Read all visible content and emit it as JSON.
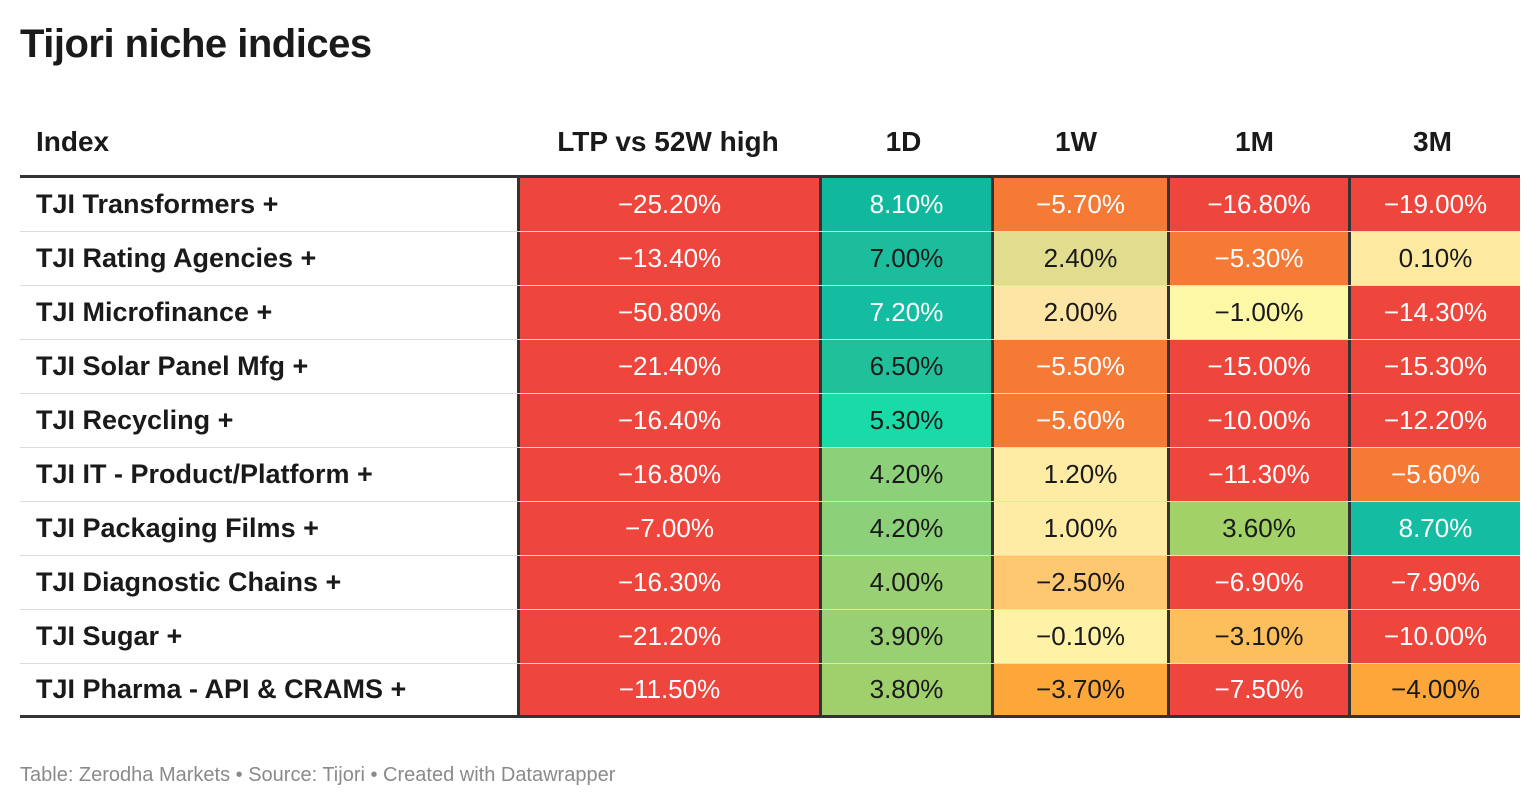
{
  "chart_data": {
    "type": "table",
    "title": "Tijori niche indices",
    "columns": [
      "Index",
      "LTP vs 52W high",
      "1D",
      "1W",
      "1M",
      "3M"
    ],
    "rows": [
      {
        "name": "TJI Transformers +",
        "ltp": "−25.20%",
        "d1": "8.10%",
        "w1": "−5.70%",
        "m1": "−16.80%",
        "m3": "−19.00%",
        "colors": {
          "ltp": "#ee463c",
          "d1": "#10b99e",
          "w1": "#f47a36",
          "m1": "#ee463c",
          "m3": "#ee463c"
        }
      },
      {
        "name": "TJI Rating Agencies +",
        "ltp": "−13.40%",
        "d1": "7.00%",
        "w1": "2.40%",
        "m1": "−5.30%",
        "m3": "0.10%",
        "colors": {
          "ltp": "#ee463c",
          "d1": "#1cbd9c",
          "w1": "#e2dc8e",
          "m1": "#f47a36",
          "m3": "#fde9a0"
        }
      },
      {
        "name": "TJI Microfinance +",
        "ltp": "−50.80%",
        "d1": "7.20%",
        "w1": "2.00%",
        "m1": "−1.00%",
        "m3": "−14.30%",
        "colors": {
          "ltp": "#ee463c",
          "d1": "#14bca2",
          "w1": "#fde5a5",
          "m1": "#fdf8a6",
          "m3": "#ee463c"
        }
      },
      {
        "name": "TJI Solar Panel Mfg +",
        "ltp": "−21.40%",
        "d1": "6.50%",
        "w1": "−5.50%",
        "m1": "−15.00%",
        "m3": "−15.30%",
        "colors": {
          "ltp": "#ee463c",
          "d1": "#20c09a",
          "w1": "#f47a36",
          "m1": "#ee463c",
          "m3": "#ee463c"
        }
      },
      {
        "name": "TJI Recycling +",
        "ltp": "−16.40%",
        "d1": "5.30%",
        "w1": "−5.60%",
        "m1": "−10.00%",
        "m3": "−12.20%",
        "colors": {
          "ltp": "#ee463c",
          "d1": "#18dba8",
          "w1": "#f47a36",
          "m1": "#ee463c",
          "m3": "#ee463c"
        }
      },
      {
        "name": "TJI IT - Product/Platform +",
        "ltp": "−16.80%",
        "d1": "4.20%",
        "w1": "1.20%",
        "m1": "−11.30%",
        "m3": "−5.60%",
        "colors": {
          "ltp": "#ee463c",
          "d1": "#8dd07a",
          "w1": "#feeba4",
          "m1": "#ee463c",
          "m3": "#f47a36"
        }
      },
      {
        "name": "TJI Packaging Films +",
        "ltp": "−7.00%",
        "d1": "4.20%",
        "w1": "1.00%",
        "m1": "3.60%",
        "m3": "8.70%",
        "colors": {
          "ltp": "#ee463c",
          "d1": "#8dd07a",
          "w1": "#feeba4",
          "m1": "#a2d167",
          "m3": "#14bca2"
        }
      },
      {
        "name": "TJI Diagnostic Chains +",
        "ltp": "−16.30%",
        "d1": "4.00%",
        "w1": "−2.50%",
        "m1": "−6.90%",
        "m3": "−7.90%",
        "colors": {
          "ltp": "#ee463c",
          "d1": "#99d073",
          "w1": "#fec870",
          "m1": "#ee463c",
          "m3": "#ee463c"
        }
      },
      {
        "name": "TJI Sugar +",
        "ltp": "−21.20%",
        "d1": "3.90%",
        "w1": "−0.10%",
        "m1": "−3.10%",
        "m3": "−10.00%",
        "colors": {
          "ltp": "#ee463c",
          "d1": "#99d073",
          "w1": "#fdf2a6",
          "m1": "#fdbe5c",
          "m3": "#ee463c"
        }
      },
      {
        "name": "TJI Pharma - API & CRAMS +",
        "ltp": "−11.50%",
        "d1": "3.80%",
        "w1": "−3.70%",
        "m1": "−7.50%",
        "m3": "−4.00%",
        "colors": {
          "ltp": "#ee463c",
          "d1": "#9fd06c",
          "w1": "#fda63a",
          "m1": "#ee463c",
          "m3": "#fda63a"
        }
      }
    ]
  },
  "footer": "Table: Zerodha Markets • Source: Tijori • Created with Datawrapper"
}
